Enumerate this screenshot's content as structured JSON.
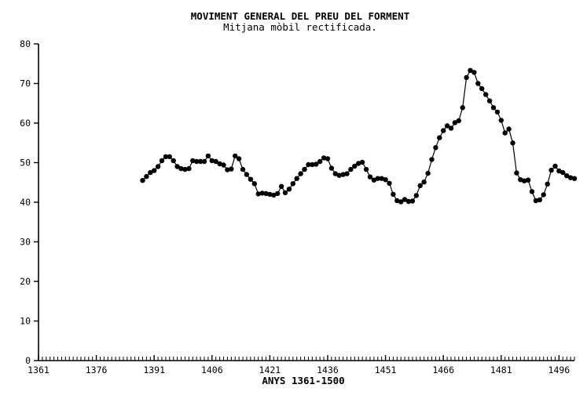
{
  "chart_data": {
    "type": "line",
    "title": "MOVIMENT GENERAL DEL PREU DEL FORMENT",
    "subtitle": "Mitjana mòbil rectificada.",
    "xlabel": "ANYS 1361-1500",
    "ylabel": "",
    "xlim": [
      1361,
      1500
    ],
    "ylim": [
      0,
      80
    ],
    "xticks": [
      "1361",
      "1376",
      "1391",
      "1406",
      "1421",
      "1436",
      "1451",
      "1466",
      "1481",
      "1496"
    ],
    "yticks": [
      "0",
      "10",
      "20",
      "30",
      "40",
      "50",
      "60",
      "70",
      "80"
    ],
    "grid": false,
    "legend": "none",
    "marker": "filled-circle",
    "line_color": "#000000",
    "series": [
      {
        "x": [
          1388,
          1389,
          1390,
          1391,
          1392,
          1393,
          1394,
          1395,
          1396,
          1397,
          1398,
          1399,
          1400,
          1401,
          1402,
          1403,
          1404,
          1405,
          1406,
          1407,
          1408,
          1409,
          1410,
          1411,
          1412,
          1413,
          1414,
          1415,
          1416,
          1417,
          1418,
          1419,
          1420,
          1421,
          1422,
          1423,
          1424,
          1425,
          1426,
          1427,
          1428,
          1429,
          1430,
          1431,
          1432,
          1433,
          1434,
          1435,
          1436,
          1437,
          1438,
          1439,
          1440,
          1441,
          1442,
          1443,
          1444,
          1445,
          1446,
          1447,
          1448,
          1449,
          1450,
          1451,
          1452,
          1453,
          1454,
          1455,
          1456,
          1457,
          1458,
          1459,
          1460,
          1461,
          1462,
          1463,
          1464,
          1465,
          1466,
          1467,
          1468,
          1469,
          1470,
          1471,
          1472,
          1473,
          1474,
          1475,
          1476,
          1477,
          1478,
          1479,
          1480,
          1481,
          1482,
          1483,
          1484,
          1485,
          1486,
          1487,
          1488,
          1489,
          1490,
          1491,
          1492,
          1493,
          1494,
          1495,
          1496,
          1497,
          1498,
          1499,
          1500
        ],
        "values": [
          45.5,
          46.5,
          47.5,
          48.0,
          49.0,
          50.5,
          51.5,
          51.5,
          50.5,
          49.0,
          48.5,
          48.3,
          48.5,
          50.5,
          50.3,
          50.3,
          50.3,
          51.7,
          50.5,
          50.3,
          49.7,
          49.4,
          48.2,
          48.4,
          51.7,
          51.0,
          48.3,
          47.0,
          45.8,
          44.7,
          42.1,
          42.3,
          42.2,
          42.0,
          41.8,
          42.2,
          44.0,
          42.4,
          43.3,
          44.7,
          46.0,
          47.2,
          48.3,
          49.5,
          49.5,
          49.6,
          50.3,
          51.2,
          51.0,
          48.6,
          47.2,
          46.8,
          47.0,
          47.2,
          48.3,
          49.1,
          49.8,
          50.1,
          48.3,
          46.4,
          45.6,
          46.0,
          46.0,
          45.7,
          44.8,
          42.0,
          40.4,
          40.1,
          40.7,
          40.2,
          40.3,
          41.7,
          44.2,
          45.1,
          47.3,
          50.8,
          53.8,
          56.3,
          58.1,
          59.3,
          58.7,
          60.1,
          60.6,
          63.9,
          71.5,
          73.3,
          72.8,
          70.0,
          68.7,
          67.2,
          65.6,
          63.9,
          62.8,
          60.7,
          57.5,
          58.5,
          55.0,
          47.4,
          45.7,
          45.4,
          45.6,
          42.7,
          40.4,
          40.6,
          41.9,
          44.6,
          48.1,
          49.1,
          47.9,
          47.5,
          46.7,
          46.2,
          46.0
        ]
      }
    ]
  }
}
